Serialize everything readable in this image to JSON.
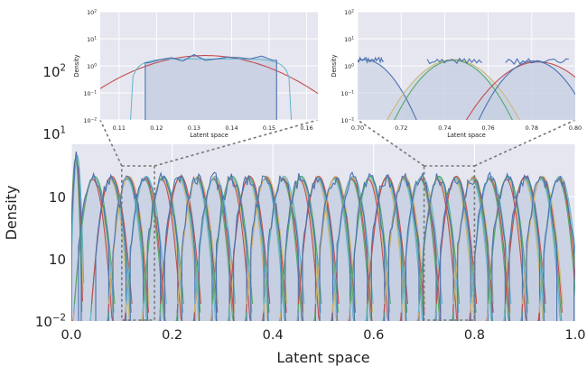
{
  "chart_data": [
    {
      "id": "main",
      "type": "line",
      "fill_under_curves": true,
      "xlabel": "Latent space",
      "ylabel": "Density",
      "x_range": [
        0.0,
        1.0
      ],
      "y_scale": "log",
      "y_range": [
        0.01,
        10
      ],
      "x_ticks": [
        0.0,
        0.2,
        0.4,
        0.6,
        0.8,
        1.0
      ],
      "x_tick_labels": [
        "0.0",
        "0.2",
        "0.4",
        "0.6",
        "0.8",
        "1.0"
      ],
      "y_tick_labels_plain": [
        "10",
        "10",
        "10",
        "10",
        "10"
      ],
      "y_tick_exponents": [
        "2",
        "1",
        "",
        "",
        "−2"
      ],
      "y_tick_labels": [
        "10^2",
        "10^1",
        "10^0",
        "10^−1",
        "10^−2"
      ],
      "y_tick_values": [
        100,
        10,
        1,
        0.1,
        0.01
      ],
      "y_tick_labels_inside_axes": [
        "10^0",
        "10^−1",
        "10^−2"
      ],
      "y_tick_labels_outside_axes": [
        "10^2",
        "10^1"
      ],
      "grid": true,
      "gaussian_components": {
        "count": 29,
        "peak_density": 2.0,
        "component_width_sd": 0.0125,
        "first_center": 0.01,
        "center_step": 0.0342,
        "first_peak_density": 4.3
      },
      "zoom_windows": [
        {
          "x": [
            0.1,
            0.165
          ],
          "inset": "left"
        },
        {
          "x": [
            0.7,
            0.8
          ],
          "inset": "right"
        }
      ],
      "colors": {
        "background": "#e5e6ef",
        "fill": "#c7cfe2",
        "histogram": "#4c72b0",
        "curves": [
          "#55a868",
          "#c44e52",
          "#ccb974",
          "#64b5cd",
          "#4c72b0"
        ],
        "zoom_box": "#777777"
      }
    },
    {
      "id": "inset-left",
      "type": "line",
      "fill_under_curves": true,
      "xlabel": "Latent space",
      "ylabel": "Density",
      "x_range": [
        0.105,
        0.163
      ],
      "x_ticks": [
        0.11,
        0.12,
        0.13,
        0.14,
        0.15,
        0.16
      ],
      "x_tick_labels": [
        "0.11",
        "0.12",
        "0.13",
        "0.14",
        "0.15",
        "0.16"
      ],
      "y_scale": "log",
      "y_range": [
        0.01,
        100
      ],
      "y_tick_labels_plain": [
        "10",
        "10",
        "10",
        "10",
        "10"
      ],
      "y_tick_exponents": [
        "2",
        "1",
        "0",
        "−1",
        "−2"
      ],
      "y_tick_labels": [
        "10^2",
        "10^1",
        "10^0",
        "10^−1",
        "10^−2"
      ],
      "y_tick_values": [
        100,
        10,
        1,
        0.1,
        0.01
      ],
      "grid": true,
      "histogram": {
        "support": [
          0.117,
          0.152
        ],
        "bin_centers": [
          0.118,
          0.121,
          0.124,
          0.127,
          0.13,
          0.133,
          0.136,
          0.139,
          0.142,
          0.145,
          0.148,
          0.151
        ],
        "densities": [
          1.3,
          1.7,
          2.0,
          1.5,
          2.6,
          1.6,
          1.8,
          2.1,
          2.0,
          1.8,
          2.3,
          1.6
        ]
      },
      "fitted_curve": {
        "color": "#c44e52",
        "mean": 0.133,
        "sd": 0.0118,
        "peak_density": 2.4
      },
      "cyan_curve": {
        "color": "#64b5cd",
        "support": [
          0.113,
          0.156
        ]
      }
    },
    {
      "id": "inset-right",
      "type": "line",
      "fill_under_curves": true,
      "xlabel": "Latent space",
      "ylabel": "Density",
      "x_range": [
        0.7,
        0.8
      ],
      "x_ticks": [
        0.7,
        0.72,
        0.74,
        0.76,
        0.78,
        0.8
      ],
      "x_tick_labels": [
        "0.70",
        "0.72",
        "0.74",
        "0.76",
        "0.78",
        "0.80"
      ],
      "y_scale": "log",
      "y_range": [
        0.01,
        100
      ],
      "y_tick_labels_plain": [
        "10",
        "10",
        "10",
        "10",
        "10"
      ],
      "y_tick_exponents": [
        "2",
        "1",
        "0",
        "−1",
        "−2"
      ],
      "y_tick_labels": [
        "10^2",
        "10^1",
        "10^0",
        "10^−1",
        "10^−2"
      ],
      "y_tick_values": [
        100,
        10,
        1,
        0.1,
        0.01
      ],
      "grid": true,
      "components": [
        {
          "mean": 0.703,
          "sd": 0.0075,
          "peak_density": 1.7,
          "color": "#4c72b0"
        },
        {
          "mean": 0.744,
          "sd": 0.0095,
          "peak_density": 1.7,
          "color": "#ccb974"
        },
        {
          "mean": 0.744,
          "sd": 0.0085,
          "peak_density": 1.6,
          "color": "#55a868"
        },
        {
          "mean": 0.783,
          "sd": 0.0105,
          "peak_density": 1.4,
          "color": "#c44e52"
        },
        {
          "mean": 0.781,
          "sd": 0.008,
          "peak_density": 1.5,
          "color": "#4c72b0"
        }
      ]
    }
  ]
}
